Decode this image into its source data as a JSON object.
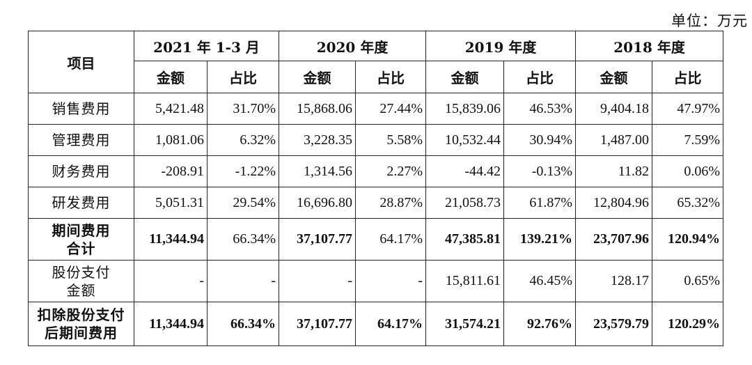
{
  "unit": "单位：万元",
  "header": {
    "item": "项目",
    "periods": [
      "2021 年 1-3 月",
      "2020 年度",
      "2019 年度",
      "2018 年度"
    ],
    "amount": "金额",
    "ratio": "占比"
  },
  "rows": [
    {
      "label": "销售费用",
      "values": [
        "5,421.48",
        "31.70%",
        "15,868.06",
        "27.44%",
        "15,839.06",
        "46.53%",
        "9,404.18",
        "47.97%"
      ]
    },
    {
      "label": "管理费用",
      "values": [
        "1,081.06",
        "6.32%",
        "3,228.35",
        "5.58%",
        "10,532.44",
        "30.94%",
        "1,487.00",
        "7.59%"
      ]
    },
    {
      "label": "财务费用",
      "values": [
        "-208.91",
        "-1.22%",
        "1,314.56",
        "2.27%",
        "-44.42",
        "-0.13%",
        "11.82",
        "0.06%"
      ]
    },
    {
      "label": "研发费用",
      "values": [
        "5,051.31",
        "29.54%",
        "16,696.80",
        "28.87%",
        "21,058.73",
        "61.87%",
        "12,804.96",
        "65.32%"
      ]
    },
    {
      "label_line1": "期间费用",
      "label_line2": "合计",
      "values": [
        "11,344.94",
        "66.34%",
        "37,107.77",
        "64.17%",
        "47,385.81",
        "139.21%",
        "23,707.96",
        "120.94%"
      ]
    },
    {
      "label_line1": "股份支付",
      "label_line2": "金额",
      "values": [
        "-",
        "-",
        "-",
        "-",
        "15,811.61",
        "46.45%",
        "128.17",
        "0.65%"
      ]
    },
    {
      "label_line1": "扣除股份支付",
      "label_line2": "后期间费用",
      "values": [
        "11,344.94",
        "66.34%",
        "37,107.77",
        "64.17%",
        "31,574.21",
        "92.76%",
        "23,579.79",
        "120.29%"
      ]
    }
  ]
}
